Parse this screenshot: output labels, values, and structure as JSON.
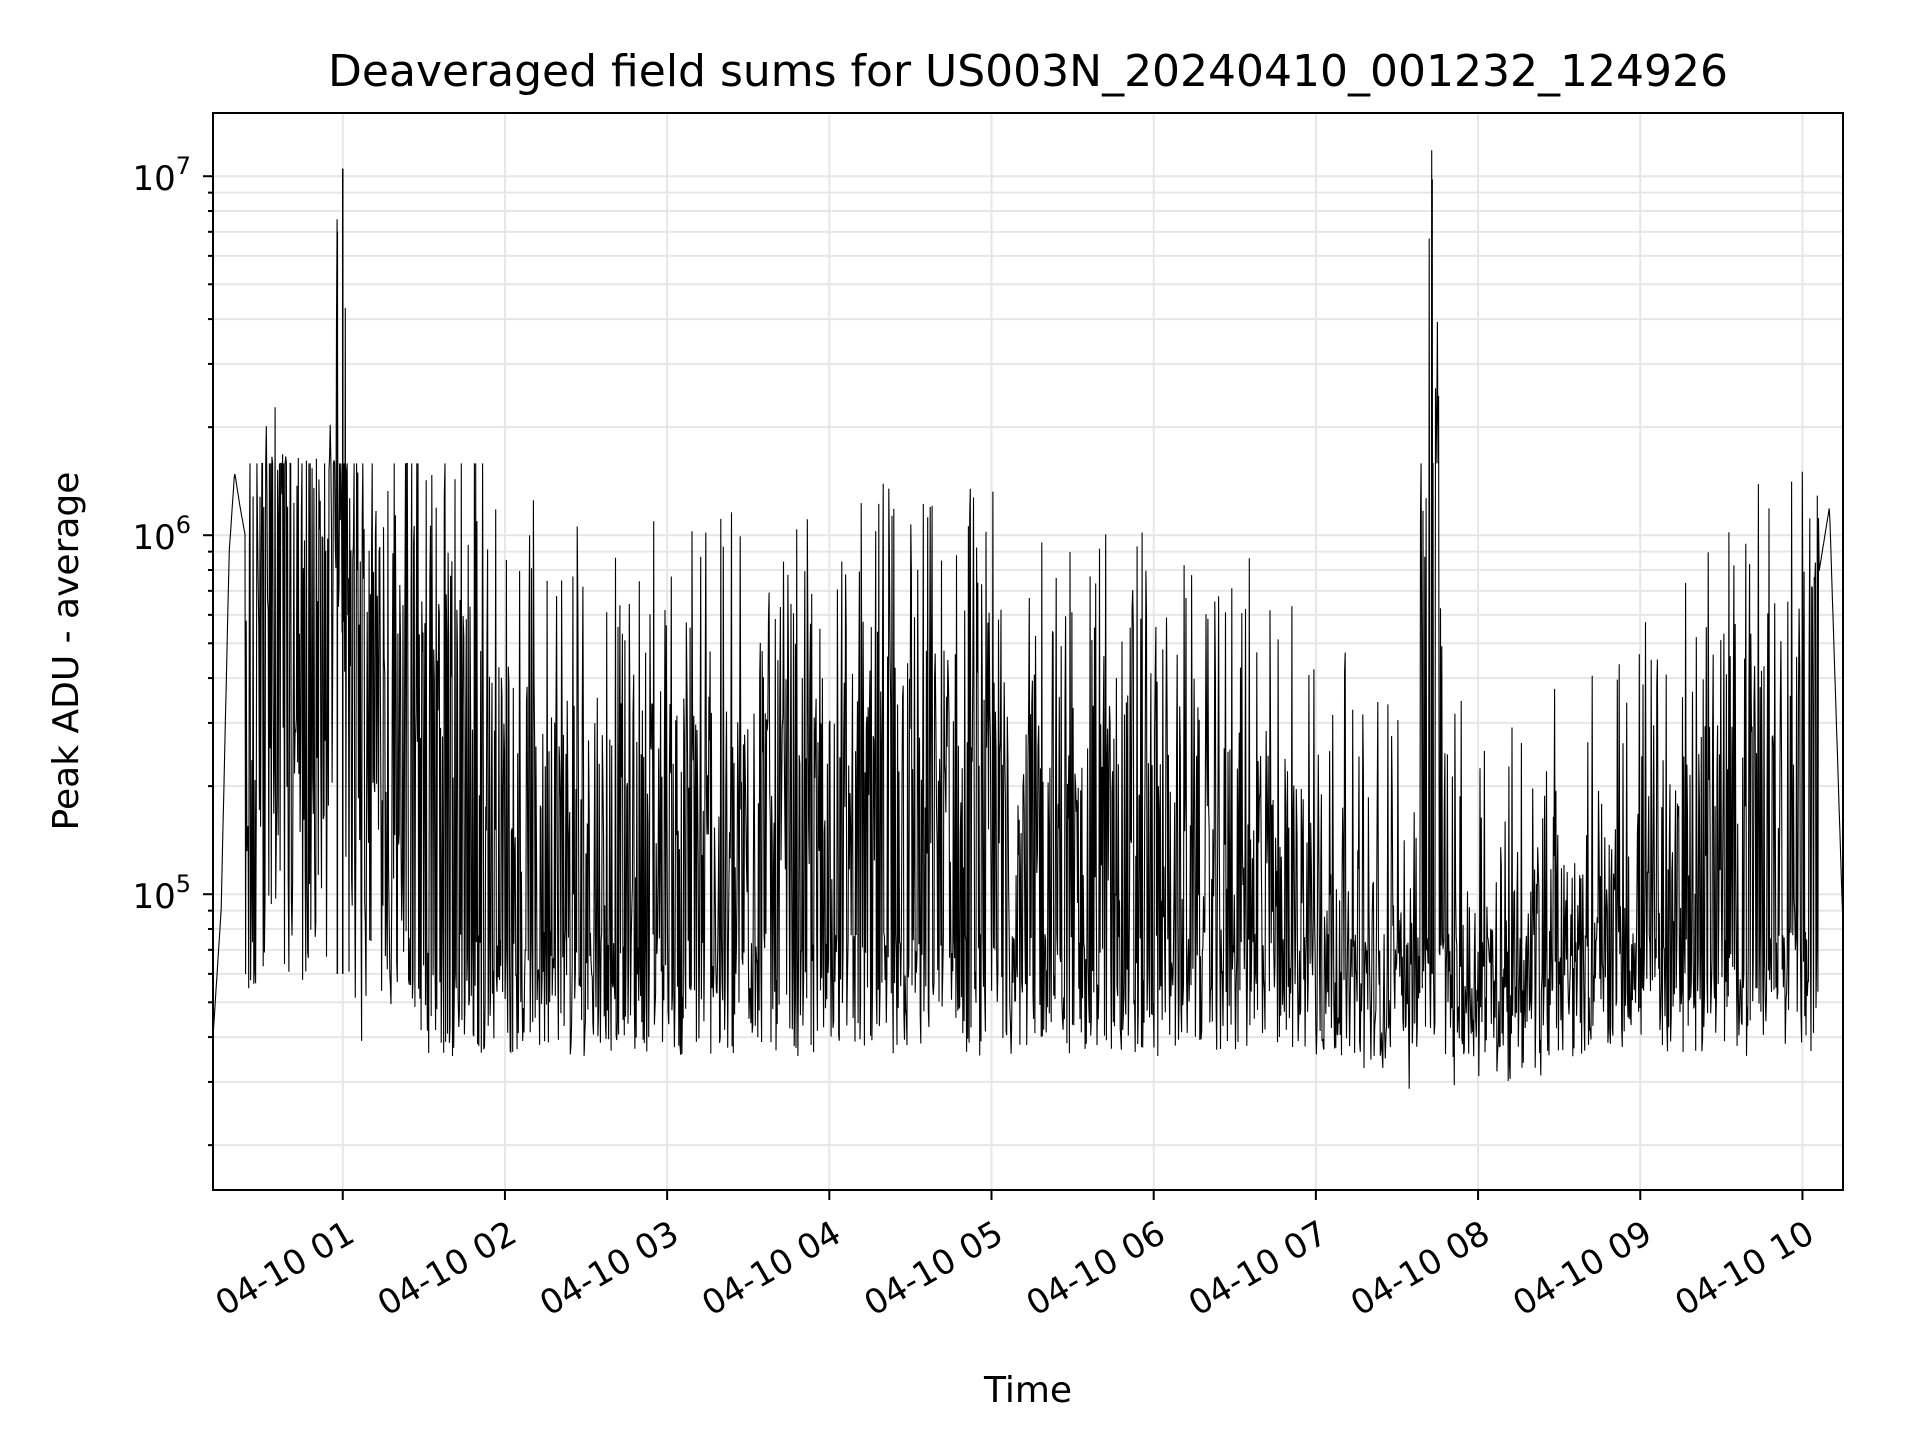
{
  "chart_data": {
    "type": "line",
    "title": "Deaveraged field sums for US003N_20240410_001232_124926",
    "xlabel": "Time",
    "ylabel": "Peak ADU - average",
    "y_scale": "log",
    "ylim": [
      15000,
      15000000
    ],
    "xlim": [
      "2024-04-10 00:12",
      "2024-04-10 10:15"
    ],
    "x_ticks": [
      "2024-04-10 01:00",
      "2024-04-10 02:00",
      "2024-04-10 03:00",
      "2024-04-10 04:00",
      "2024-04-10 05:00",
      "2024-04-10 06:00",
      "2024-04-10 07:00",
      "2024-04-10 08:00",
      "2024-04-10 09:00",
      "2024-04-10 10:00"
    ],
    "x_tick_labels": [
      "04-10 01",
      "04-10 02",
      "04-10 03",
      "04-10 04",
      "04-10 05",
      "04-10 06",
      "04-10 07",
      "04-10 08",
      "04-10 09",
      "04-10 10"
    ],
    "y_ticks": [
      100000,
      1000000,
      10000000
    ],
    "y_tick_labels": [
      {
        "base": "10",
        "exp": "5"
      },
      {
        "base": "10",
        "exp": "6"
      },
      {
        "base": "10",
        "exp": "7"
      }
    ],
    "grid": true,
    "line_color": "#000000",
    "grid_color": "#e6e6e6",
    "series": [
      {
        "x": [
          "2024-04-10 00:12",
          "2024-04-10 00:15",
          "2024-04-10 00:18",
          "2024-04-10 00:20",
          "2024-04-10 00:22",
          "2024-04-10 00:25",
          "2024-04-10 00:30",
          "2024-04-10 00:35",
          "2024-04-10 00:40",
          "2024-04-10 00:45",
          "2024-04-10 00:50",
          "2024-04-10 00:55",
          "2024-04-10 00:58",
          "2024-04-10 01:00",
          "2024-04-10 01:02",
          "2024-04-10 01:10",
          "2024-04-10 01:20",
          "2024-04-10 01:30",
          "2024-04-10 01:45",
          "2024-04-10 02:00",
          "2024-04-10 02:20",
          "2024-04-10 02:40",
          "2024-04-10 03:00",
          "2024-04-10 03:20",
          "2024-04-10 03:40",
          "2024-04-10 04:00",
          "2024-04-10 04:20",
          "2024-04-10 04:40",
          "2024-04-10 05:00",
          "2024-04-10 05:20",
          "2024-04-10 05:40",
          "2024-04-10 06:00",
          "2024-04-10 06:20",
          "2024-04-10 06:40",
          "2024-04-10 07:00",
          "2024-04-10 07:20",
          "2024-04-10 07:35",
          "2024-04-10 07:43",
          "2024-04-10 07:50",
          "2024-04-10 08:00",
          "2024-04-10 08:20",
          "2024-04-10 08:40",
          "2024-04-10 09:00",
          "2024-04-10 09:20",
          "2024-04-10 09:40",
          "2024-04-10 09:55",
          "2024-04-10 10:05",
          "2024-04-10 10:10",
          "2024-04-10 10:15"
        ],
        "y": [
          40000,
          90000,
          900000,
          1500000,
          1200000,
          900000,
          1100000,
          1300000,
          1200000,
          1000000,
          900000,
          1000000,
          7000000,
          10500000,
          800000,
          700000,
          600000,
          450000,
          350000,
          250000,
          180000,
          150000,
          200000,
          180000,
          220000,
          200000,
          230000,
          250000,
          210000,
          200000,
          170000,
          160000,
          130000,
          140000,
          100000,
          60000,
          55000,
          9800000,
          55000,
          55000,
          60000,
          70000,
          100000,
          150000,
          200000,
          350000,
          700000,
          1200000,
          80000
        ]
      }
    ]
  }
}
